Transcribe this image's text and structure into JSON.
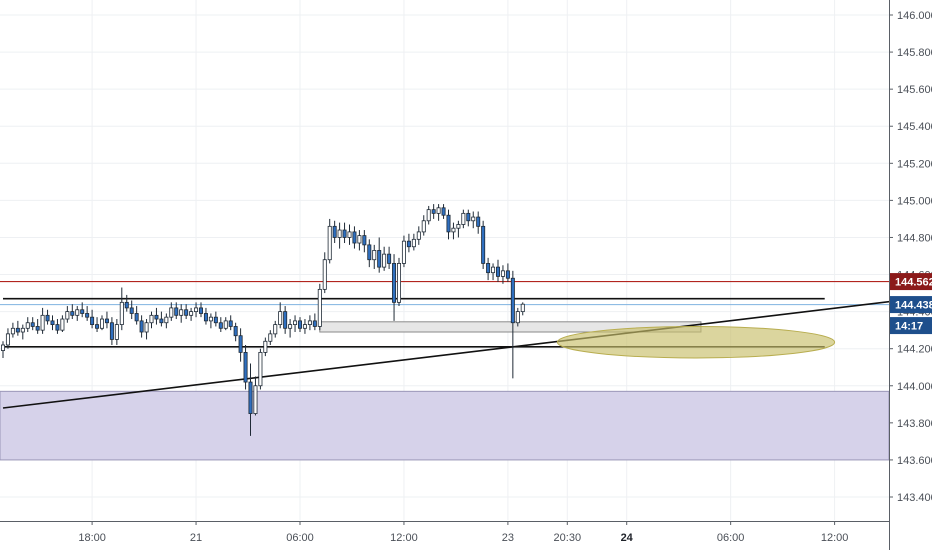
{
  "chart_data": {
    "type": "candlestick",
    "y_axis": {
      "ylim": [
        143.28,
        146.09
      ],
      "ticks": [
        "146.000",
        "145.800",
        "145.600",
        "145.400",
        "145.200",
        "145.000",
        "144.800",
        "144.600",
        "144.400",
        "144.200",
        "144.000",
        "143.800",
        "143.600",
        "143.400"
      ],
      "tick_values": [
        146.0,
        145.8,
        145.6,
        145.4,
        145.2,
        145.0,
        144.8,
        144.6,
        144.4,
        144.2,
        144.0,
        143.8,
        143.6,
        143.4
      ],
      "grid": true
    },
    "x_axis": {
      "labels": [
        {
          "text": "18:00",
          "bar": 18,
          "bold": false
        },
        {
          "text": "21",
          "bar": 39,
          "bold": false
        },
        {
          "text": "06:00",
          "bar": 60,
          "bold": false
        },
        {
          "text": "12:00",
          "bar": 81,
          "bold": false
        },
        {
          "text": "23",
          "bar": 102,
          "bold": false
        },
        {
          "text": "20:30",
          "bar": 114,
          "bold": false
        },
        {
          "text": "24",
          "bar": 126,
          "bold": true
        },
        {
          "text": "06:00",
          "bar": 147,
          "bold": false
        },
        {
          "text": "12:00",
          "bar": 168,
          "bold": false
        }
      ],
      "grid": true
    },
    "price_tags": [
      {
        "label": "144.562",
        "value": 144.562,
        "color": "#8b1a1a"
      },
      {
        "label": "144.438",
        "value": 144.438,
        "color": "#1e4f8c"
      },
      {
        "label": "14:17",
        "value": 144.34,
        "color": "#1e4f8c"
      }
    ],
    "drawings": {
      "resistance_line": {
        "value": 144.562,
        "color": "#b2251f"
      },
      "last_price_line": {
        "value": 144.438,
        "color": "#7fb3e0"
      },
      "horizontal_lines": [
        {
          "value": 144.47,
          "from_bar": 0,
          "to_bar": 166,
          "color": "#111111"
        },
        {
          "value": 144.21,
          "from_bar": 0,
          "to_bar": 166,
          "color": "#111111"
        }
      ],
      "trendline": {
        "from_bar": 0,
        "from_value": 143.88,
        "to_bar": 181,
        "to_value": 144.46,
        "color": "#111111"
      },
      "demand_zone": {
        "top": 143.97,
        "bottom": 143.6,
        "color": "#d6d2ea",
        "border": "#9a96b8"
      },
      "small_zone": {
        "from_bar": 64,
        "to_bar": 141,
        "top": 144.345,
        "bottom": 144.29,
        "color": "#e6e6e6",
        "border": "#8a8a8a"
      },
      "ellipse": {
        "center_bar": 140,
        "center_value": 144.235,
        "radius_bars": 28,
        "radius_value": 0.085,
        "color": "#c8bf6a"
      }
    },
    "bars": [
      [
        144.19,
        144.24,
        144.15,
        144.22
      ],
      [
        144.22,
        144.31,
        144.2,
        144.28
      ],
      [
        144.28,
        144.34,
        144.26,
        144.31
      ],
      [
        144.31,
        144.35,
        144.27,
        144.29
      ],
      [
        144.29,
        144.33,
        144.25,
        144.31
      ],
      [
        144.31,
        144.37,
        144.29,
        144.34
      ],
      [
        144.34,
        144.37,
        144.3,
        144.32
      ],
      [
        144.32,
        144.36,
        144.28,
        144.3
      ],
      [
        144.3,
        144.42,
        144.28,
        144.38
      ],
      [
        144.38,
        144.41,
        144.33,
        144.35
      ],
      [
        144.35,
        144.38,
        144.3,
        144.33
      ],
      [
        144.33,
        144.36,
        144.28,
        144.3
      ],
      [
        144.3,
        144.38,
        144.29,
        144.36
      ],
      [
        144.36,
        144.43,
        144.34,
        144.4
      ],
      [
        144.4,
        144.44,
        144.36,
        144.38
      ],
      [
        144.38,
        144.43,
        144.35,
        144.41
      ],
      [
        144.41,
        144.45,
        144.37,
        144.39
      ],
      [
        144.39,
        144.43,
        144.35,
        144.37
      ],
      [
        144.37,
        144.41,
        144.31,
        144.33
      ],
      [
        144.33,
        144.37,
        144.29,
        144.31
      ],
      [
        144.31,
        144.38,
        144.3,
        144.36
      ],
      [
        144.36,
        144.4,
        144.31,
        144.34
      ],
      [
        144.34,
        144.37,
        144.22,
        144.25
      ],
      [
        144.25,
        144.36,
        144.22,
        144.33
      ],
      [
        144.33,
        144.53,
        144.3,
        144.45
      ],
      [
        144.45,
        144.49,
        144.4,
        144.42
      ],
      [
        144.42,
        144.46,
        144.36,
        144.39
      ],
      [
        144.39,
        144.43,
        144.33,
        144.35
      ],
      [
        144.35,
        144.38,
        144.26,
        144.29
      ],
      [
        144.29,
        144.36,
        144.25,
        144.34
      ],
      [
        144.34,
        144.4,
        144.31,
        144.38
      ],
      [
        144.38,
        144.42,
        144.33,
        144.36
      ],
      [
        144.36,
        144.4,
        144.32,
        144.34
      ],
      [
        144.34,
        144.39,
        144.31,
        144.37
      ],
      [
        144.37,
        144.45,
        144.35,
        144.42
      ],
      [
        144.42,
        144.45,
        144.36,
        144.38
      ],
      [
        144.38,
        144.44,
        144.34,
        144.41
      ],
      [
        144.41,
        144.44,
        144.36,
        144.38
      ],
      [
        144.38,
        144.42,
        144.35,
        144.4
      ],
      [
        144.4,
        144.45,
        144.37,
        144.42
      ],
      [
        144.42,
        144.45,
        144.37,
        144.39
      ],
      [
        144.39,
        144.42,
        144.33,
        144.35
      ],
      [
        144.35,
        144.39,
        144.31,
        144.37
      ],
      [
        144.37,
        144.4,
        144.32,
        144.34
      ],
      [
        144.34,
        144.37,
        144.29,
        144.31
      ],
      [
        144.31,
        144.37,
        144.3,
        144.35
      ],
      [
        144.35,
        144.38,
        144.3,
        144.32
      ],
      [
        144.32,
        144.34,
        144.24,
        144.27
      ],
      [
        144.27,
        144.31,
        144.13,
        144.18
      ],
      [
        144.18,
        144.22,
        143.98,
        144.02
      ],
      [
        144.02,
        144.12,
        143.73,
        143.85
      ],
      [
        143.85,
        144.05,
        143.84,
        144.0
      ],
      [
        144.0,
        144.2,
        143.98,
        144.18
      ],
      [
        144.18,
        144.26,
        144.16,
        144.24
      ],
      [
        144.24,
        144.3,
        144.22,
        144.28
      ],
      [
        144.28,
        144.35,
        144.26,
        144.33
      ],
      [
        144.33,
        144.45,
        144.31,
        144.4
      ],
      [
        144.4,
        144.43,
        144.28,
        144.31
      ],
      [
        144.31,
        144.36,
        144.26,
        144.33
      ],
      [
        144.33,
        144.38,
        144.29,
        144.35
      ],
      [
        144.35,
        144.37,
        144.29,
        144.31
      ],
      [
        144.31,
        144.36,
        144.28,
        144.33
      ],
      [
        144.33,
        144.38,
        144.3,
        144.35
      ],
      [
        144.35,
        144.39,
        144.3,
        144.32
      ],
      [
        144.32,
        144.55,
        144.3,
        144.52
      ],
      [
        144.52,
        144.72,
        144.5,
        144.68
      ],
      [
        144.68,
        144.9,
        144.66,
        144.86
      ],
      [
        144.86,
        144.89,
        144.77,
        144.8
      ],
      [
        144.8,
        144.88,
        144.74,
        144.84
      ],
      [
        144.84,
        144.88,
        144.77,
        144.8
      ],
      [
        144.8,
        144.87,
        144.76,
        144.83
      ],
      [
        144.83,
        144.86,
        144.74,
        144.77
      ],
      [
        144.77,
        144.84,
        144.73,
        144.81
      ],
      [
        144.81,
        144.84,
        144.72,
        144.76
      ],
      [
        144.76,
        144.79,
        144.64,
        144.68
      ],
      [
        144.68,
        144.76,
        144.63,
        144.73
      ],
      [
        144.73,
        144.8,
        144.61,
        144.64
      ],
      [
        144.64,
        144.75,
        144.62,
        144.71
      ],
      [
        144.71,
        144.75,
        144.63,
        144.66
      ],
      [
        144.66,
        144.71,
        144.35,
        144.45
      ],
      [
        144.45,
        144.69,
        144.43,
        144.66
      ],
      [
        144.66,
        144.81,
        144.64,
        144.78
      ],
      [
        144.78,
        144.82,
        144.72,
        144.75
      ],
      [
        144.75,
        144.82,
        144.73,
        144.79
      ],
      [
        144.79,
        144.86,
        144.76,
        144.83
      ],
      [
        144.83,
        144.92,
        144.81,
        144.89
      ],
      [
        144.89,
        144.97,
        144.87,
        144.95
      ],
      [
        144.95,
        144.98,
        144.9,
        144.93
      ],
      [
        144.93,
        144.98,
        144.89,
        144.96
      ],
      [
        144.96,
        144.98,
        144.9,
        144.92
      ],
      [
        144.92,
        144.95,
        144.79,
        144.83
      ],
      [
        144.83,
        144.88,
        144.79,
        144.85
      ],
      [
        144.85,
        144.89,
        144.8,
        144.87
      ],
      [
        144.87,
        144.95,
        144.85,
        144.93
      ],
      [
        144.93,
        144.95,
        144.86,
        144.89
      ],
      [
        144.89,
        144.94,
        144.85,
        144.91
      ],
      [
        144.91,
        144.94,
        144.82,
        144.86
      ],
      [
        144.86,
        144.89,
        144.63,
        144.66
      ],
      [
        144.66,
        144.69,
        144.57,
        144.61
      ],
      [
        144.61,
        144.66,
        144.57,
        144.64
      ],
      [
        144.64,
        144.68,
        144.56,
        144.59
      ],
      [
        144.59,
        144.65,
        144.55,
        144.62
      ],
      [
        144.62,
        144.66,
        144.56,
        144.58
      ],
      [
        144.58,
        144.62,
        144.04,
        144.34
      ],
      [
        144.34,
        144.42,
        144.32,
        144.4
      ],
      [
        144.4,
        144.45,
        144.38,
        144.44
      ]
    ]
  }
}
